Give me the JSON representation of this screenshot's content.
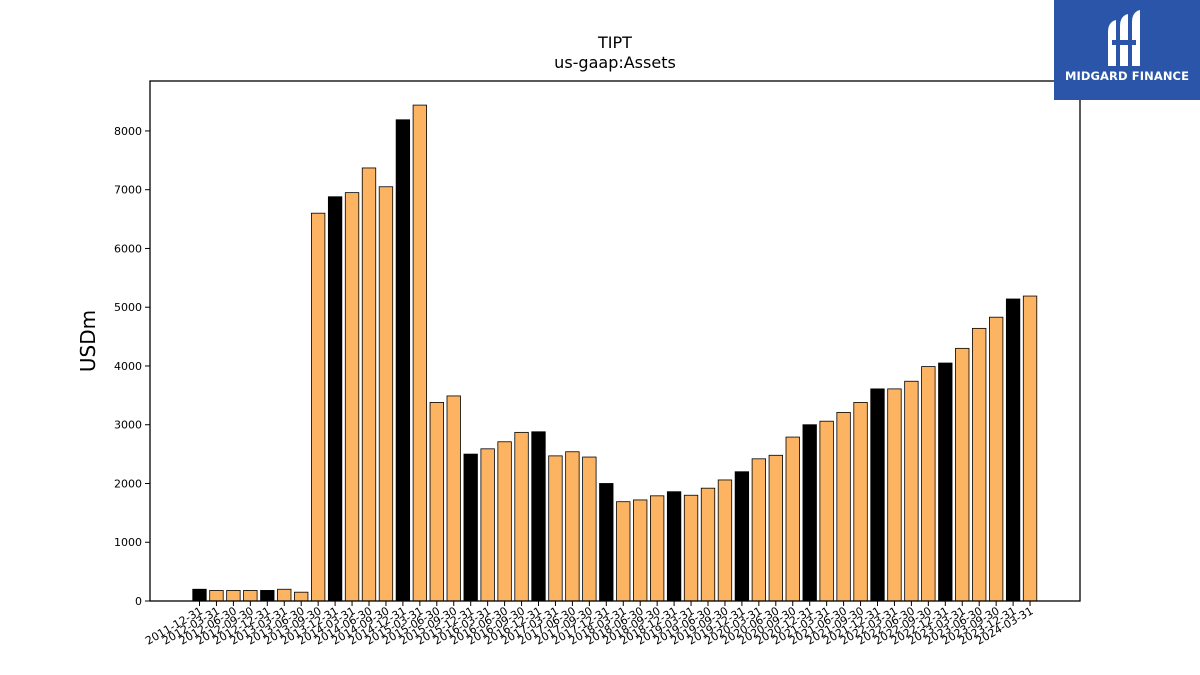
{
  "brand": {
    "name": "MIDGARD FINANCE",
    "icon": "midgard-logo-icon",
    "background": "#2a55a8"
  },
  "chart_data": {
    "type": "bar",
    "title": "TIPT",
    "subtitle": "us-gaap:Assets",
    "xlabel": "",
    "ylabel": "USDm",
    "ylim": [
      0,
      8850
    ],
    "yticks": [
      0,
      1000,
      2000,
      3000,
      4000,
      5000,
      6000,
      7000,
      8000
    ],
    "grid": false,
    "colors": {
      "annual": "#000000",
      "quarterly": "#fdb462",
      "edge": "#000000"
    },
    "categories": [
      "2011-12-31",
      "2012-03-31",
      "2012-06-30",
      "2012-09-30",
      "2012-12-31",
      "2013-03-31",
      "2013-06-30",
      "2013-09-30",
      "2013-12-31",
      "2014-03-31",
      "2014-06-30",
      "2014-09-30",
      "2014-12-31",
      "2015-03-31",
      "2015-06-30",
      "2015-09-30",
      "2015-12-31",
      "2016-03-31",
      "2016-06-30",
      "2016-09-30",
      "2016-12-31",
      "2017-03-31",
      "2017-06-30",
      "2017-09-30",
      "2017-12-31",
      "2018-03-31",
      "2018-06-30",
      "2018-09-30",
      "2018-12-31",
      "2019-03-31",
      "2019-06-30",
      "2019-09-30",
      "2019-12-31",
      "2020-03-31",
      "2020-06-30",
      "2020-09-30",
      "2020-12-31",
      "2021-03-31",
      "2021-06-30",
      "2021-09-30",
      "2021-12-31",
      "2022-03-31",
      "2022-06-30",
      "2022-09-30",
      "2022-12-31",
      "2023-03-31",
      "2023-06-30",
      "2023-09-30",
      "2023-12-31",
      "2024-03-31"
    ],
    "values": [
      200,
      180,
      180,
      180,
      180,
      200,
      150,
      6600,
      6880,
      6950,
      7370,
      7050,
      8190,
      8440,
      3380,
      3490,
      2500,
      2590,
      2710,
      2870,
      2880,
      2470,
      2540,
      2450,
      2000,
      1690,
      1720,
      1790,
      1860,
      1800,
      1920,
      2060,
      2200,
      2420,
      2480,
      2790,
      3000,
      3060,
      3210,
      3380,
      3610,
      3610,
      3740,
      3990,
      4050,
      4300,
      4640,
      4830,
      5140,
      5190
    ],
    "annual": [
      true,
      false,
      false,
      false,
      true,
      false,
      false,
      false,
      true,
      false,
      false,
      false,
      true,
      false,
      false,
      false,
      true,
      false,
      false,
      false,
      true,
      false,
      false,
      false,
      true,
      false,
      false,
      false,
      true,
      false,
      false,
      false,
      true,
      false,
      false,
      false,
      true,
      false,
      false,
      false,
      true,
      false,
      false,
      false,
      true,
      false,
      false,
      false,
      true,
      false
    ]
  }
}
